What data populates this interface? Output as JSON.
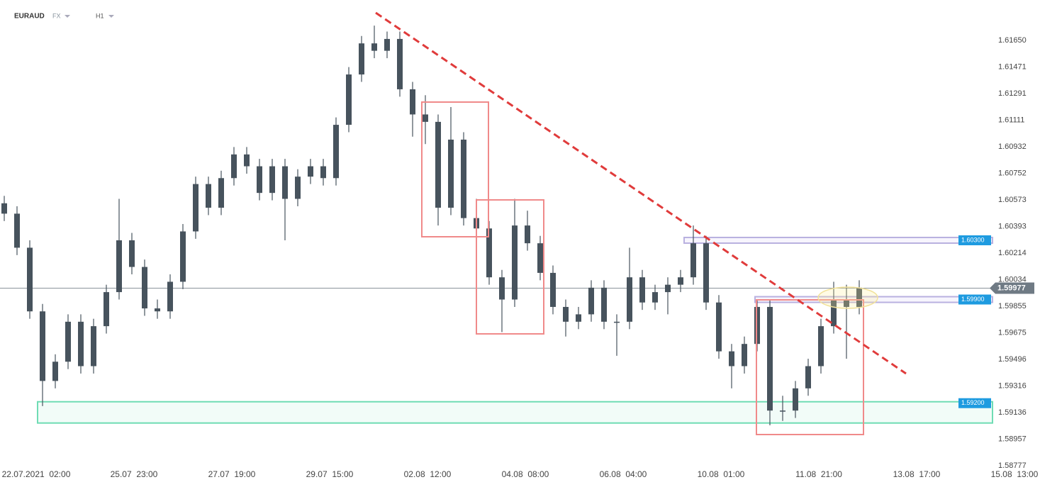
{
  "chart_data": {
    "type": "candlestick",
    "symbol": "EURAUD",
    "market": "FX",
    "timeframe": "H1",
    "color": "#47535d",
    "xlim": [
      0,
      480
    ],
    "xticks": [
      {
        "value": 17,
        "label": "22.07.2021  02:00"
      },
      {
        "value": 63,
        "label": "25.07  23:00"
      },
      {
        "value": 109,
        "label": "27.07  19:00"
      },
      {
        "value": 155,
        "label": "29.07  15:00"
      },
      {
        "value": 201,
        "label": "02.08  12:00"
      },
      {
        "value": 247,
        "label": "04.08  08:00"
      },
      {
        "value": 293,
        "label": "06.08  04:00"
      },
      {
        "value": 339,
        "label": "10.08  01:00"
      },
      {
        "value": 385,
        "label": "11.08  21:00"
      },
      {
        "value": 431,
        "label": "13.08  17:00"
      },
      {
        "value": 477,
        "label": "15.08  13:00"
      }
    ],
    "ylim": [
      1.58763,
      1.61923
    ],
    "yticks": [
      {
        "value": 1.6165,
        "label": "1.61650"
      },
      1.61471,
      1.61291,
      1.61111,
      1.60932,
      1.60752,
      1.60573,
      1.60393,
      1.60214,
      1.60034,
      1.59855,
      1.59675,
      1.59496,
      1.59316,
      1.59136,
      1.58957,
      1.58777
    ],
    "grid": false,
    "x": [
      2,
      8,
      14,
      20,
      26,
      32,
      38,
      44,
      50,
      56,
      62,
      68,
      74,
      80,
      86,
      92,
      98,
      104,
      110,
      116,
      122,
      128,
      134,
      140,
      146,
      152,
      158,
      164,
      170,
      176,
      182,
      188,
      194,
      200,
      206,
      212,
      218,
      224,
      230,
      236,
      242,
      248,
      254,
      260,
      266,
      272,
      278,
      284,
      290,
      296,
      302,
      308,
      314,
      320,
      326,
      332,
      338,
      344,
      350,
      356,
      362,
      368,
      374,
      380,
      386,
      392,
      398,
      404
    ],
    "candles": [
      [
        1.6055,
        1.606,
        1.6043,
        1.6048
      ],
      [
        1.6048,
        1.6053,
        1.602,
        1.6025
      ],
      [
        1.6025,
        1.603,
        1.5977,
        1.5982
      ],
      [
        1.5982,
        1.5987,
        1.5918,
        1.5935
      ],
      [
        1.5935,
        1.5953,
        1.593,
        1.5948
      ],
      [
        1.5948,
        1.598,
        1.5943,
        1.5975
      ],
      [
        1.5975,
        1.598,
        1.594,
        1.5945
      ],
      [
        1.5945,
        1.5977,
        1.594,
        1.5972
      ],
      [
        1.5972,
        1.6,
        1.5967,
        1.5995
      ],
      [
        1.5995,
        1.6058,
        1.599,
        1.603
      ],
      [
        1.603,
        1.6035,
        1.6007,
        1.6012
      ],
      [
        1.6012,
        1.6017,
        1.5979,
        1.5984
      ],
      [
        1.5984,
        1.599,
        1.5977,
        1.5982
      ],
      [
        1.5982,
        1.6007,
        1.5977,
        1.6002
      ],
      [
        1.6002,
        1.6041,
        1.5997,
        1.6036
      ],
      [
        1.6036,
        1.6073,
        1.6031,
        1.6068
      ],
      [
        1.6068,
        1.6073,
        1.6047,
        1.6052
      ],
      [
        1.6052,
        1.6077,
        1.6047,
        1.6072
      ],
      [
        1.6072,
        1.6093,
        1.6067,
        1.6088
      ],
      [
        1.6088,
        1.6093,
        1.6075,
        1.608
      ],
      [
        1.608,
        1.6085,
        1.6057,
        1.6062
      ],
      [
        1.6062,
        1.6085,
        1.6057,
        1.608
      ],
      [
        1.608,
        1.6085,
        1.603,
        1.6058
      ],
      [
        1.6058,
        1.6078,
        1.6053,
        1.6073
      ],
      [
        1.6073,
        1.6085,
        1.6068,
        1.608
      ],
      [
        1.608,
        1.6085,
        1.6067,
        1.6072
      ],
      [
        1.6072,
        1.6113,
        1.6067,
        1.6108
      ],
      [
        1.6108,
        1.6147,
        1.6103,
        1.6142
      ],
      [
        1.6142,
        1.6168,
        1.6137,
        1.6163
      ],
      [
        1.6163,
        1.6175,
        1.6153,
        1.6158
      ],
      [
        1.6158,
        1.6171,
        1.6153,
        1.6166
      ],
      [
        1.6166,
        1.6171,
        1.6127,
        1.6132
      ],
      [
        1.6132,
        1.6137,
        1.61,
        1.6115
      ],
      [
        1.6115,
        1.6128,
        1.6095,
        1.611
      ],
      [
        1.611,
        1.6115,
        1.604,
        1.6052
      ],
      [
        1.6052,
        1.612,
        1.6047,
        1.6098
      ],
      [
        1.6098,
        1.6103,
        1.604,
        1.6045
      ],
      [
        1.6045,
        1.6058,
        1.6033,
        1.6038
      ],
      [
        1.6038,
        1.6043,
        1.6,
        1.6005
      ],
      [
        1.6005,
        1.601,
        1.5968,
        1.599
      ],
      [
        1.599,
        1.6058,
        1.5985,
        1.604
      ],
      [
        1.604,
        1.605,
        1.6023,
        1.6028
      ],
      [
        1.6028,
        1.6033,
        1.6003,
        1.6008
      ],
      [
        1.6008,
        1.6013,
        1.598,
        1.5985
      ],
      [
        1.5985,
        1.599,
        1.5965,
        1.5975
      ],
      [
        1.5975,
        1.5985,
        1.597,
        1.598
      ],
      [
        1.598,
        1.6003,
        1.5975,
        1.5998
      ],
      [
        1.5998,
        1.6003,
        1.597,
        1.5975
      ],
      [
        1.5975,
        1.598,
        1.5952,
        1.5975
      ],
      [
        1.5975,
        1.6025,
        1.597,
        1.6005
      ],
      [
        1.6005,
        1.601,
        1.5983,
        1.5988
      ],
      [
        1.5988,
        1.6,
        1.5983,
        1.5995
      ],
      [
        1.5995,
        1.6005,
        1.598,
        1.6
      ],
      [
        1.6,
        1.601,
        1.5995,
        1.6005
      ],
      [
        1.6005,
        1.604,
        1.6,
        1.6028
      ],
      [
        1.6028,
        1.6033,
        1.5983,
        1.5988
      ],
      [
        1.5988,
        1.5993,
        1.595,
        1.5955
      ],
      [
        1.5955,
        1.596,
        1.593,
        1.5945
      ],
      [
        1.5945,
        1.5965,
        1.594,
        1.596
      ],
      [
        1.596,
        1.599,
        1.5955,
        1.5985
      ],
      [
        1.5985,
        1.599,
        1.5905,
        1.5915
      ],
      [
        1.5915,
        1.5925,
        1.5908,
        1.5915
      ],
      [
        1.5915,
        1.5935,
        1.591,
        1.593
      ],
      [
        1.593,
        1.595,
        1.5925,
        1.5945
      ],
      [
        1.5945,
        1.5977,
        1.594,
        1.5972
      ],
      [
        1.5972,
        1.6002,
        1.5967,
        1.599
      ],
      [
        1.599,
        1.6,
        1.595,
        1.5985
      ],
      [
        1.5985,
        1.6003,
        1.598,
        1.5998
      ]
    ],
    "levels": [
      {
        "value": 1.603,
        "label": "1.60300"
      },
      {
        "value": 1.599,
        "label": "1.59900"
      },
      {
        "value": 1.592,
        "label": "1.59200"
      }
    ],
    "current_price": {
      "value": 1.59977,
      "label": "1.59977"
    }
  }
}
